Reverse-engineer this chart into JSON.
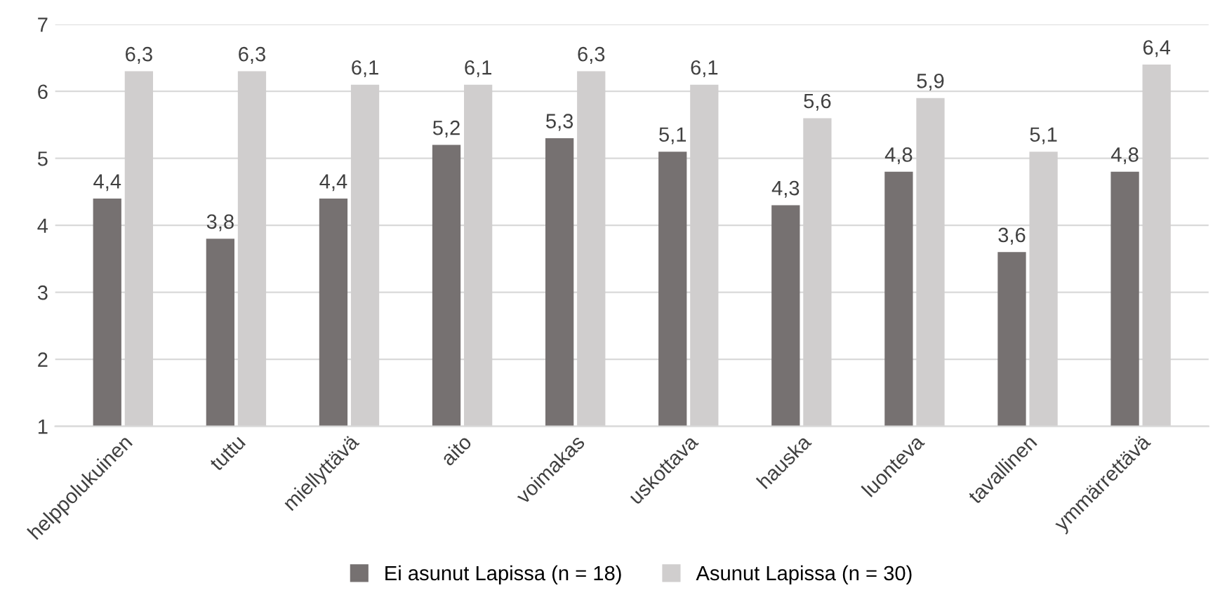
{
  "chart_data": {
    "type": "bar",
    "categories": [
      "helppolukuinen",
      "tuttu",
      "miellyttävä",
      "aito",
      "voimakas",
      "uskottava",
      "hauska",
      "luonteva",
      "tavallinen",
      "ymmärrettävä"
    ],
    "series": [
      {
        "name": "Ei asunut Lapissa (n = 18)",
        "color": "#767171",
        "values": [
          4.4,
          3.8,
          4.4,
          5.2,
          5.3,
          5.1,
          4.3,
          4.8,
          3.6,
          4.8
        ],
        "value_labels": [
          "4,4",
          "3,8",
          "4,4",
          "5,2",
          "5,3",
          "5,1",
          "4,3",
          "4,8",
          "3,6",
          "4,8"
        ]
      },
      {
        "name": "Asunut Lapissa (n = 30)",
        "color": "#d0cece",
        "values": [
          6.3,
          6.3,
          6.1,
          6.1,
          6.3,
          6.1,
          5.6,
          5.9,
          5.1,
          6.4
        ],
        "value_labels": [
          "6,3",
          "6,3",
          "6,1",
          "6,1",
          "6,3",
          "6,1",
          "5,6",
          "5,9",
          "5,1",
          "6,4"
        ]
      }
    ],
    "ylim": [
      1,
      7
    ],
    "yticks": [
      1,
      2,
      3,
      4,
      5,
      6,
      7
    ],
    "grid": "y",
    "legend": "bottom"
  }
}
